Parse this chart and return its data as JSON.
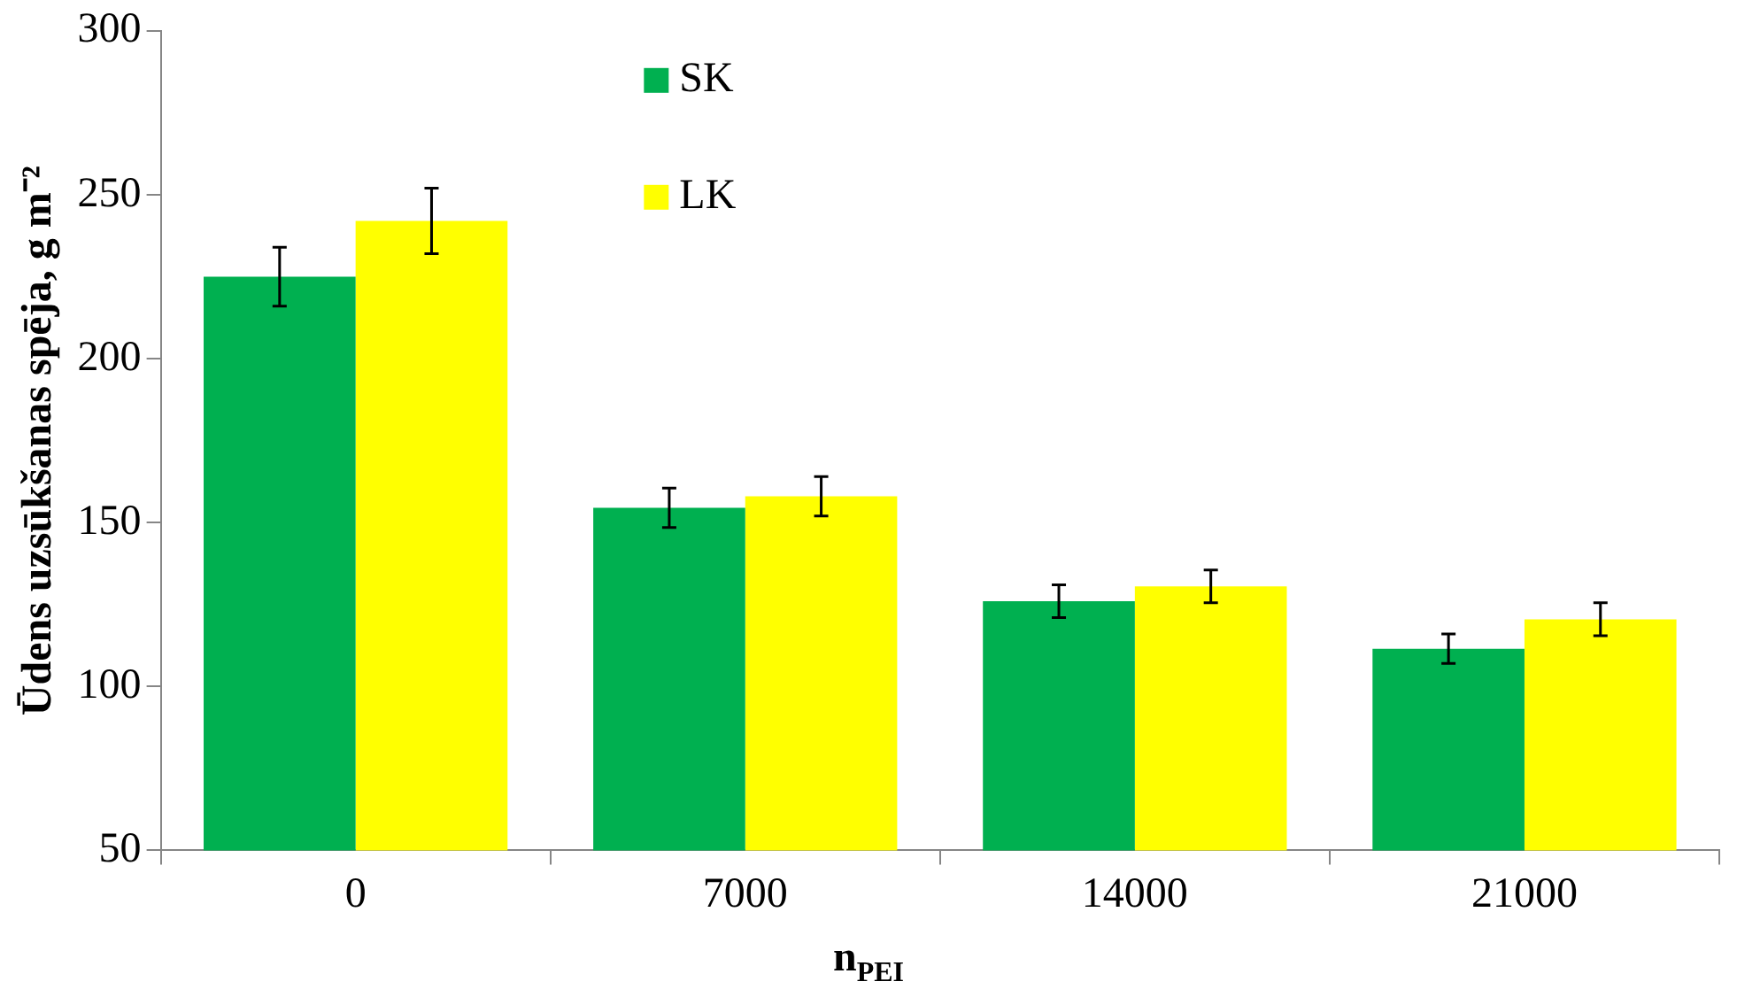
{
  "chart_data": {
    "type": "bar",
    "xlabel": "n$_{PEI}$",
    "ylabel": "Ūdens uzsūkšanas spēja, g m⁻²",
    "categories": [
      "0",
      "7000",
      "14000",
      "21000"
    ],
    "series": [
      {
        "name": "SK",
        "color": "#00b050",
        "values": [
          225,
          154.5,
          126,
          111.5
        ],
        "errors": [
          9,
          6,
          5,
          4.5
        ]
      },
      {
        "name": "LK",
        "color": "#ffff00",
        "values": [
          242,
          158,
          130.5,
          120.5
        ],
        "errors": [
          10,
          6,
          5,
          5
        ]
      }
    ],
    "ylim": [
      50,
      300
    ],
    "yticks": [
      50,
      100,
      150,
      200,
      250,
      300
    ],
    "legend": "top"
  }
}
